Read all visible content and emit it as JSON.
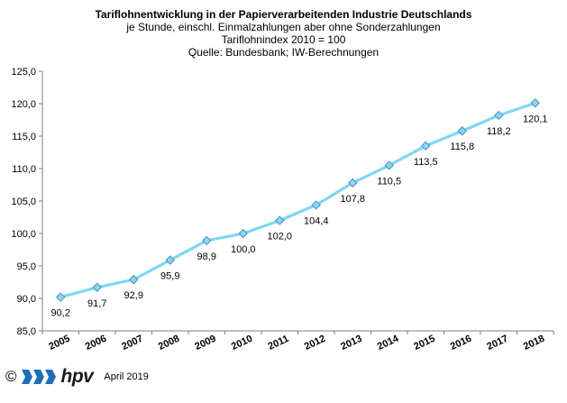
{
  "chart_data": {
    "type": "line",
    "title": "Tariflohnentwicklung in der Papierverarbeitenden Industrie Deutschlands",
    "subtitle_lines": [
      "je Stunde, einschl. Einmalzahlungen  aber ohne Sonderzahlungen",
      "Tariflohnindex  2010 = 100",
      "Quelle: Bundesbank; IW-Berechnungen"
    ],
    "x": [
      "2005",
      "2006",
      "2007",
      "2008",
      "2009",
      "2010",
      "2011",
      "2012",
      "2013",
      "2014",
      "2015",
      "2016",
      "2017",
      "2018"
    ],
    "series": [
      {
        "values": [
          90.2,
          91.7,
          92.9,
          95.9,
          98.9,
          100.0,
          102.0,
          104.4,
          107.8,
          110.5,
          113.5,
          115.8,
          118.2,
          120.1
        ]
      }
    ],
    "data_labels": [
      "90,2",
      "91,7",
      "92,9",
      "95,9",
      "98,9",
      "100,0",
      "102,0",
      "104,4",
      "107,8",
      "110,5",
      "113,5",
      "115,8",
      "118,2",
      "120,1"
    ],
    "ylim": [
      85,
      125
    ],
    "y_ticks": [
      "85,0",
      "90,0",
      "95,0",
      "100,0",
      "105,0",
      "110,0",
      "115,0",
      "120,0",
      "125,0"
    ],
    "grid": false,
    "colors": {
      "line": "#7fd6f5",
      "marker_fill": "#8fd3f2",
      "marker_stroke": "#4a8fc0"
    }
  },
  "footer": {
    "copyright": "©",
    "logo_text": "hpv",
    "date": "April 2019"
  }
}
